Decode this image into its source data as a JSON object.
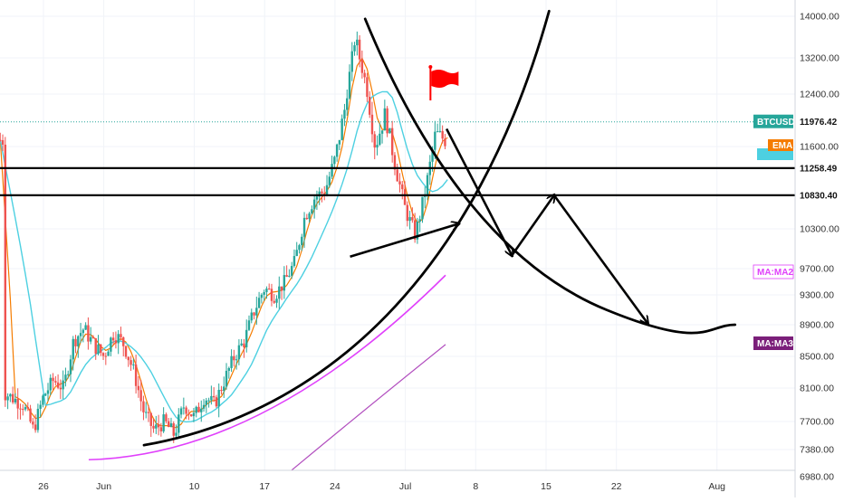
{
  "chart_data": {
    "type": "candlestick",
    "symbol": "BTCUSD",
    "last_price": "11976.42",
    "ylim": [
      7100,
      14300
    ],
    "y_ticks": [
      "14000.00",
      "13200.00",
      "12400.00",
      "11600.00",
      "10300.00",
      "9700.00",
      "9300.00",
      "8900.00",
      "8500.00",
      "8100.00",
      "7700.00",
      "7380.00",
      "6980.00"
    ],
    "x_ticks": [
      {
        "label": "26",
        "day": 0
      },
      {
        "label": "Jun",
        "day": 6
      },
      {
        "label": "10",
        "day": 15
      },
      {
        "label": "17",
        "day": 22
      },
      {
        "label": "24",
        "day": 29
      },
      {
        "label": "Jul",
        "day": 36
      },
      {
        "label": "8",
        "day": 43
      },
      {
        "label": "15",
        "day": 50
      },
      {
        "label": "22",
        "day": 57
      },
      {
        "label": "Aug",
        "day": 67
      }
    ],
    "horizontal_levels": [
      {
        "label": "11258.49",
        "value": 11258.49
      },
      {
        "label": "10830.40",
        "value": 10830.4
      }
    ],
    "indicator_badges": [
      {
        "label": "EMA",
        "color": "#f57c00"
      },
      {
        "label": "MA:MA2",
        "color": "#e040fb"
      },
      {
        "label": "MA:MA3",
        "color": "#7b1f7a"
      }
    ],
    "colors": {
      "up": "#26a69a",
      "down": "#ef5350",
      "ema": "#f57c00",
      "ma1": "#4dd0e1",
      "ma2": "#e040fb",
      "ma3": "#b24fbf",
      "last_price_line": "#26a69a",
      "drawing": "#000000",
      "flag": "#ff0000"
    }
  }
}
